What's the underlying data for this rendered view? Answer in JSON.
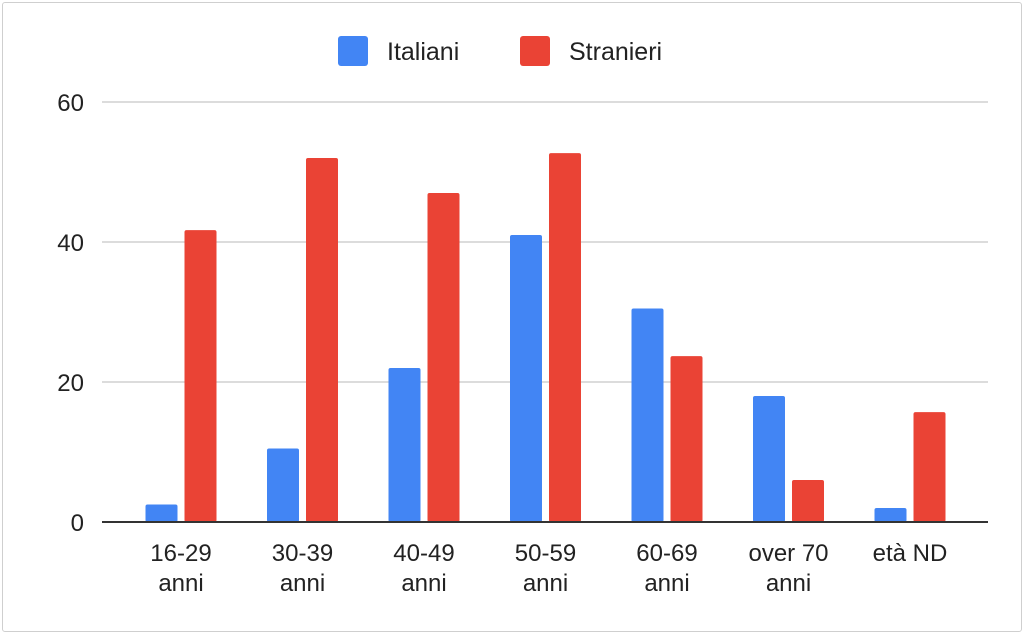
{
  "chart_data": {
    "type": "bar",
    "categories": [
      [
        "16-29",
        "anni"
      ],
      [
        "30-39",
        "anni"
      ],
      [
        "40-49",
        "anni"
      ],
      [
        "50-59",
        "anni"
      ],
      [
        "60-69",
        "anni"
      ],
      [
        "over 70",
        "anni"
      ],
      [
        "età ND"
      ]
    ],
    "series": [
      {
        "name": "Italiani",
        "color": "#4285f4",
        "values": [
          2.5,
          10.5,
          22,
          41,
          30.5,
          18,
          2
        ]
      },
      {
        "name": "Stranieri",
        "color": "#ea4335",
        "values": [
          41.7,
          52,
          47,
          52.7,
          23.7,
          6,
          15.7
        ]
      }
    ],
    "title": "",
    "xlabel": "",
    "ylabel": "",
    "ylim": [
      0,
      60
    ],
    "yticks": [
      0,
      20,
      40,
      60
    ],
    "grid": true,
    "legend_position": "top"
  }
}
